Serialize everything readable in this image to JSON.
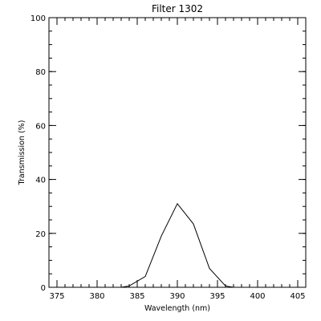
{
  "chart_data": {
    "type": "line",
    "title": "Filter 1302",
    "xlabel": "Wavelength (nm)",
    "ylabel": "Transmission (%)",
    "xlim": [
      374,
      406
    ],
    "ylim": [
      0,
      100
    ],
    "x_ticks": [
      375,
      380,
      385,
      390,
      395,
      400,
      405
    ],
    "y_ticks": [
      0,
      20,
      40,
      60,
      80,
      100
    ],
    "x_minor_step": 1,
    "y_minor_step": 5,
    "grid": false,
    "series": [
      {
        "color": "#000000",
        "x": [
          383,
          384,
          386,
          388,
          390,
          392,
          394,
          396,
          397,
          398
        ],
        "y": [
          0,
          0.5,
          4,
          19,
          31,
          23.5,
          7,
          0.5,
          0,
          0
        ]
      }
    ]
  }
}
